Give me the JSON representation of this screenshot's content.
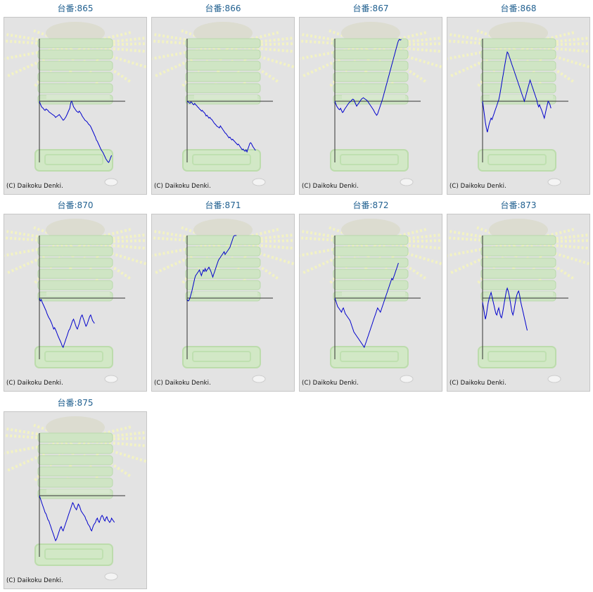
{
  "copyright_text": "(C) Daikoku Denki.",
  "colors": {
    "line": "#0000cc",
    "axis": "#333333",
    "title": "#1f5f8f",
    "panel_bg": "#e3e3e3"
  },
  "machines": [
    {
      "title": "台番:865",
      "chart_data": {
        "type": "line",
        "y": [
          0,
          -4,
          -7,
          -9,
          -10,
          -12,
          -13,
          -11,
          -12,
          -13,
          -15,
          -16,
          -17,
          -18,
          -19,
          -20,
          -21,
          -23,
          -22,
          -21,
          -20,
          -19,
          -21,
          -23,
          -25,
          -27,
          -26,
          -24,
          -22,
          -19,
          -16,
          -13,
          -10,
          -2,
          0,
          -4,
          -8,
          -10,
          -12,
          -14,
          -15,
          -16,
          -14,
          -16,
          -18,
          -21,
          -23,
          -25,
          -27,
          -28,
          -29,
          -31,
          -33,
          -34,
          -36,
          -39,
          -42,
          -45,
          -48,
          -51,
          -55,
          -57,
          -60,
          -63,
          -66,
          -69,
          -71,
          -73,
          -76,
          -79,
          -82,
          -84,
          -86,
          -88,
          -84,
          -80,
          -77
        ]
      }
    },
    {
      "title": "台番:866",
      "chart_data": {
        "type": "line",
        "y": [
          0,
          -1,
          -2,
          -3,
          -1,
          -2,
          -4,
          -5,
          -3,
          -5,
          -6,
          -8,
          -9,
          -11,
          -12,
          -14,
          -13,
          -15,
          -16,
          -18,
          -21,
          -20,
          -22,
          -24,
          -23,
          -25,
          -26,
          -28,
          -30,
          -32,
          -33,
          -35,
          -36,
          -37,
          -38,
          -35,
          -37,
          -39,
          -41,
          -43,
          -45,
          -46,
          -48,
          -50,
          -52,
          -51,
          -53,
          -55,
          -54,
          -56,
          -57,
          -59,
          -60,
          -62,
          -61,
          -63,
          -65,
          -67,
          -69,
          -68,
          -70,
          -71,
          -69,
          -72,
          -68,
          -64,
          -60,
          -59,
          -61,
          -64,
          -66,
          -68,
          -70
        ]
      }
    },
    {
      "title": "台番:867",
      "chart_data": {
        "type": "line",
        "y": [
          0,
          -4,
          -7,
          -9,
          -11,
          -12,
          -10,
          -13,
          -16,
          -15,
          -12,
          -10,
          -8,
          -6,
          -4,
          -2,
          -1,
          0,
          2,
          3,
          2,
          -1,
          -4,
          -7,
          -5,
          -3,
          -1,
          1,
          3,
          4,
          5,
          4,
          3,
          2,
          1,
          -1,
          -3,
          -5,
          -7,
          -9,
          -11,
          -13,
          -16,
          -18,
          -20,
          -18,
          -14,
          -10,
          -6,
          -2,
          2,
          7,
          12,
          17,
          22,
          27,
          32,
          37,
          42,
          47,
          52,
          57,
          62,
          67,
          72,
          77,
          82,
          86,
          88,
          87,
          88
        ]
      }
    },
    {
      "title": "台番:868",
      "chart_data": {
        "type": "line",
        "y": [
          0,
          -10,
          -20,
          -30,
          -38,
          -44,
          -38,
          -32,
          -28,
          -24,
          -26,
          -22,
          -18,
          -14,
          -10,
          -6,
          -2,
          2,
          8,
          16,
          24,
          32,
          40,
          48,
          56,
          64,
          70,
          68,
          64,
          60,
          56,
          52,
          48,
          44,
          40,
          36,
          32,
          28,
          24,
          20,
          16,
          12,
          8,
          4,
          0,
          5,
          10,
          15,
          20,
          25,
          30,
          26,
          22,
          18,
          14,
          10,
          6,
          2,
          -4,
          -8,
          -5,
          -9,
          -12,
          -16,
          -20,
          -24,
          -18,
          -12,
          -6,
          0,
          -2,
          -5,
          -10
        ]
      }
    },
    {
      "title": "台番:870",
      "chart_data": {
        "type": "line",
        "y": [
          0,
          -4,
          -2,
          -6,
          -9,
          -12,
          -15,
          -18,
          -22,
          -25,
          -28,
          -30,
          -33,
          -36,
          -40,
          -44,
          -42,
          -45,
          -48,
          -52,
          -55,
          -58,
          -61,
          -64,
          -68,
          -70,
          -66,
          -62,
          -58,
          -54,
          -50,
          -46,
          -44,
          -40,
          -36,
          -32,
          -30,
          -34,
          -38,
          -42,
          -44,
          -40,
          -36,
          -30,
          -26,
          -24,
          -28,
          -32,
          -36,
          -40,
          -38,
          -34,
          -30,
          -26,
          -24,
          -28,
          -32,
          -34,
          -36
        ]
      }
    },
    {
      "title": "台番:871",
      "chart_data": {
        "type": "line",
        "y": [
          -2,
          -4,
          -3,
          0,
          5,
          10,
          16,
          22,
          28,
          32,
          34,
          36,
          38,
          40,
          36,
          32,
          36,
          40,
          38,
          42,
          38,
          40,
          42,
          44,
          41,
          38,
          34,
          30,
          34,
          38,
          42,
          46,
          50,
          54,
          56,
          58,
          60,
          62,
          64,
          66,
          62,
          64,
          66,
          68,
          70,
          72,
          76,
          80,
          84,
          88,
          92,
          96,
          98
        ]
      }
    },
    {
      "title": "台番:872",
      "chart_data": {
        "type": "line",
        "y": [
          0,
          -4,
          -8,
          -12,
          -14,
          -16,
          -18,
          -20,
          -16,
          -14,
          -18,
          -22,
          -24,
          -26,
          -28,
          -30,
          -32,
          -36,
          -40,
          -44,
          -48,
          -50,
          -52,
          -54,
          -56,
          -58,
          -60,
          -62,
          -64,
          -66,
          -68,
          -70,
          -66,
          -62,
          -58,
          -54,
          -50,
          -46,
          -42,
          -38,
          -34,
          -30,
          -26,
          -22,
          -18,
          -14,
          -16,
          -18,
          -20,
          -16,
          -12,
          -8,
          -4,
          0,
          4,
          8,
          12,
          16,
          20,
          24,
          28,
          26,
          30,
          34,
          38,
          42,
          46,
          50
        ]
      }
    },
    {
      "title": "台番:873",
      "chart_data": {
        "type": "line",
        "y": [
          -6,
          -14,
          -22,
          -30,
          -24,
          -14,
          -6,
          0,
          4,
          8,
          2,
          -4,
          -10,
          -16,
          -22,
          -24,
          -18,
          -14,
          -20,
          -26,
          -28,
          -22,
          -14,
          -6,
          2,
          10,
          14,
          10,
          4,
          -4,
          -12,
          -20,
          -24,
          -18,
          -10,
          -2,
          4,
          8,
          10,
          4,
          -4,
          -10,
          -16,
          -22,
          -28,
          -34,
          -40,
          -46
        ]
      }
    },
    {
      "title": "台番:875",
      "chart_data": {
        "type": "line",
        "y": [
          0,
          -4,
          -8,
          -12,
          -16,
          -20,
          -24,
          -26,
          -30,
          -34,
          -36,
          -40,
          -44,
          -48,
          -52,
          -56,
          -60,
          -64,
          -62,
          -58,
          -54,
          -50,
          -46,
          -44,
          -48,
          -50,
          -46,
          -42,
          -38,
          -34,
          -30,
          -26,
          -22,
          -18,
          -14,
          -10,
          -12,
          -16,
          -18,
          -20,
          -16,
          -12,
          -14,
          -18,
          -22,
          -24,
          -26,
          -28,
          -30,
          -34,
          -36,
          -40,
          -42,
          -44,
          -48,
          -50,
          -46,
          -42,
          -40,
          -38,
          -34,
          -32,
          -36,
          -38,
          -34,
          -30,
          -28,
          -30,
          -34,
          -36,
          -32,
          -30,
          -34,
          -36,
          -38,
          -36,
          -32,
          -34,
          -36,
          -38
        ]
      }
    }
  ]
}
